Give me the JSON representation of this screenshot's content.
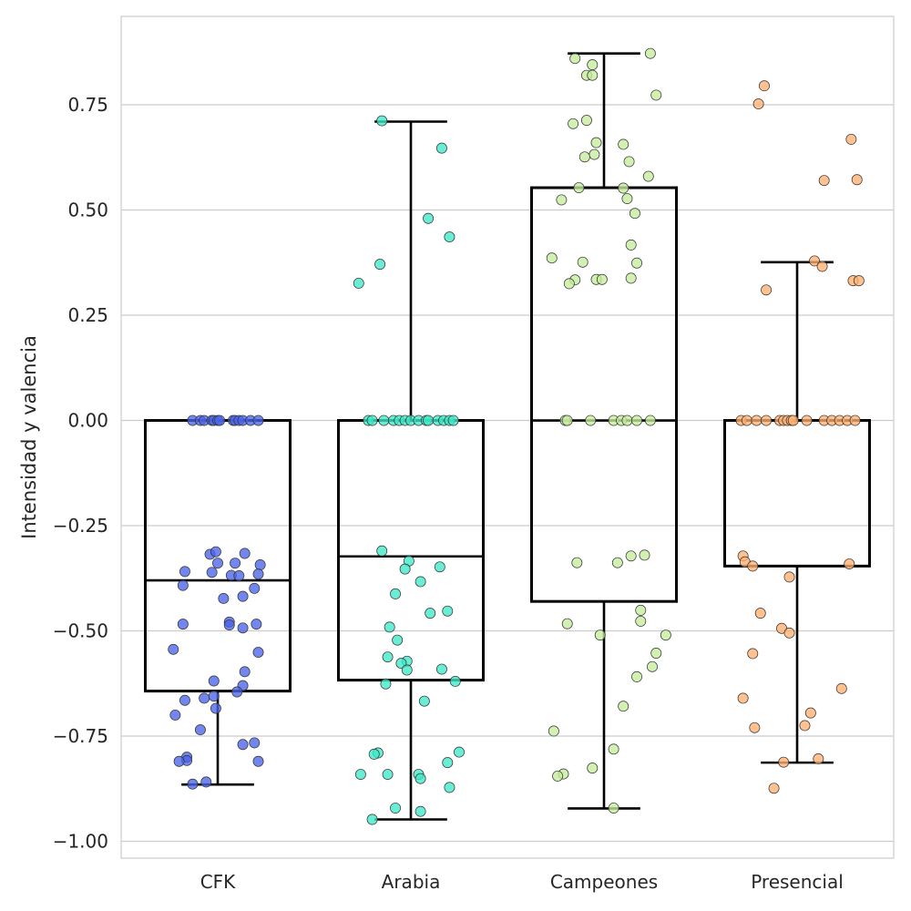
{
  "chart_data": {
    "type": "box",
    "title": "",
    "xlabel": "",
    "ylabel": "Intensidad y valencia",
    "ylim": [
      -1.04,
      0.96
    ],
    "yticks": [
      0.75,
      0.5,
      0.25,
      0.0,
      -0.25,
      -0.5,
      -0.75,
      -1.0
    ],
    "ytick_labels": [
      "0.75",
      "0.50",
      "0.25",
      "0.00",
      "−0.25",
      "−0.50",
      "−0.75",
      "−1.00"
    ],
    "grid": "horizontal",
    "categories": [
      "CFK",
      "Arabia",
      "Campeones",
      "Presencial"
    ],
    "colors": [
      "#4a64e8",
      "#3fe8c8",
      "#c4ec9c",
      "#ffb070"
    ],
    "boxes": [
      {
        "category": "CFK",
        "q1": -0.643,
        "median": -0.38,
        "q3": 0.0,
        "whisker_low": -0.865,
        "whisker_high": 0.0
      },
      {
        "category": "Arabia",
        "q1": -0.617,
        "median": -0.323,
        "q3": 0.0,
        "whisker_low": -0.948,
        "whisker_high": 0.71
      },
      {
        "category": "Campeones",
        "q1": -0.43,
        "median": 0.0,
        "q3": 0.553,
        "whisker_low": -0.922,
        "whisker_high": 0.872
      },
      {
        "category": "Presencial",
        "q1": -0.346,
        "median": 0.0,
        "q3": 0.0,
        "whisker_low": -0.813,
        "whisker_high": 0.376
      }
    ],
    "points": [
      {
        "category": "CFK",
        "values": [
          {
            "x": -0.13,
            "y": 0.0
          },
          {
            "x": -0.09,
            "y": 0.0
          },
          {
            "x": -0.07,
            "y": 0.0
          },
          {
            "x": -0.03,
            "y": 0.0
          },
          {
            "x": -0.02,
            "y": 0.0
          },
          {
            "x": 0.0,
            "y": 0.0
          },
          {
            "x": 0.01,
            "y": 0.0
          },
          {
            "x": 0.08,
            "y": 0.0
          },
          {
            "x": 0.09,
            "y": 0.0
          },
          {
            "x": 0.11,
            "y": 0.0
          },
          {
            "x": 0.13,
            "y": 0.0
          },
          {
            "x": 0.17,
            "y": 0.0
          },
          {
            "x": 0.21,
            "y": 0.0
          },
          {
            "x": -0.04,
            "y": -0.318
          },
          {
            "x": -0.01,
            "y": -0.312
          },
          {
            "x": 0.0,
            "y": -0.339
          },
          {
            "x": 0.09,
            "y": -0.339
          },
          {
            "x": 0.14,
            "y": -0.316
          },
          {
            "x": 0.22,
            "y": -0.343
          },
          {
            "x": -0.17,
            "y": -0.359
          },
          {
            "x": -0.03,
            "y": -0.361
          },
          {
            "x": 0.07,
            "y": -0.368
          },
          {
            "x": 0.11,
            "y": -0.369
          },
          {
            "x": 0.21,
            "y": -0.365
          },
          {
            "x": -0.18,
            "y": -0.392
          },
          {
            "x": 0.19,
            "y": -0.399
          },
          {
            "x": 0.03,
            "y": -0.423
          },
          {
            "x": 0.13,
            "y": -0.418
          },
          {
            "x": -0.18,
            "y": -0.484
          },
          {
            "x": 0.06,
            "y": -0.479
          },
          {
            "x": 0.06,
            "y": -0.486
          },
          {
            "x": 0.13,
            "y": -0.493
          },
          {
            "x": 0.2,
            "y": -0.484
          },
          {
            "x": -0.23,
            "y": -0.544
          },
          {
            "x": 0.21,
            "y": -0.551
          },
          {
            "x": 0.14,
            "y": -0.597
          },
          {
            "x": -0.02,
            "y": -0.619
          },
          {
            "x": 0.13,
            "y": -0.63
          },
          {
            "x": 0.1,
            "y": -0.645
          },
          {
            "x": -0.02,
            "y": -0.655
          },
          {
            "x": -0.07,
            "y": -0.66
          },
          {
            "x": -0.17,
            "y": -0.665
          },
          {
            "x": -0.01,
            "y": -0.684
          },
          {
            "x": -0.22,
            "y": -0.7
          },
          {
            "x": -0.09,
            "y": -0.735
          },
          {
            "x": 0.13,
            "y": -0.77
          },
          {
            "x": 0.19,
            "y": -0.766
          },
          {
            "x": -0.16,
            "y": -0.8
          },
          {
            "x": -0.16,
            "y": -0.808
          },
          {
            "x": -0.2,
            "y": -0.81
          },
          {
            "x": 0.21,
            "y": -0.81
          },
          {
            "x": -0.06,
            "y": -0.859
          },
          {
            "x": -0.13,
            "y": -0.864
          }
        ]
      },
      {
        "category": "Arabia",
        "values": [
          {
            "x": -0.22,
            "y": 0.0
          },
          {
            "x": -0.2,
            "y": 0.0
          },
          {
            "x": -0.14,
            "y": 0.0
          },
          {
            "x": -0.09,
            "y": 0.0
          },
          {
            "x": -0.06,
            "y": 0.0
          },
          {
            "x": -0.03,
            "y": 0.0
          },
          {
            "x": 0.0,
            "y": 0.0
          },
          {
            "x": 0.04,
            "y": 0.0
          },
          {
            "x": 0.08,
            "y": 0.0
          },
          {
            "x": 0.09,
            "y": 0.0
          },
          {
            "x": 0.14,
            "y": 0.0
          },
          {
            "x": 0.17,
            "y": 0.0
          },
          {
            "x": 0.2,
            "y": 0.0
          },
          {
            "x": 0.22,
            "y": 0.0
          },
          {
            "x": -0.15,
            "y": 0.712
          },
          {
            "x": 0.16,
            "y": 0.647
          },
          {
            "x": 0.09,
            "y": 0.48
          },
          {
            "x": 0.2,
            "y": 0.436
          },
          {
            "x": -0.16,
            "y": 0.371
          },
          {
            "x": -0.27,
            "y": 0.326
          },
          {
            "x": -0.15,
            "y": -0.31
          },
          {
            "x": -0.01,
            "y": -0.334
          },
          {
            "x": 0.15,
            "y": -0.348
          },
          {
            "x": -0.03,
            "y": -0.353
          },
          {
            "x": 0.05,
            "y": -0.383
          },
          {
            "x": -0.08,
            "y": -0.412
          },
          {
            "x": 0.1,
            "y": -0.458
          },
          {
            "x": 0.19,
            "y": -0.453
          },
          {
            "x": -0.11,
            "y": -0.491
          },
          {
            "x": -0.07,
            "y": -0.522
          },
          {
            "x": -0.12,
            "y": -0.562
          },
          {
            "x": -0.02,
            "y": -0.572
          },
          {
            "x": -0.05,
            "y": -0.577
          },
          {
            "x": -0.02,
            "y": -0.593
          },
          {
            "x": 0.16,
            "y": -0.591
          },
          {
            "x": 0.23,
            "y": -0.62
          },
          {
            "x": -0.13,
            "y": -0.626
          },
          {
            "x": 0.07,
            "y": -0.667
          },
          {
            "x": -0.17,
            "y": -0.79
          },
          {
            "x": -0.19,
            "y": -0.793
          },
          {
            "x": 0.25,
            "y": -0.788
          },
          {
            "x": 0.19,
            "y": -0.813
          },
          {
            "x": -0.12,
            "y": -0.841
          },
          {
            "x": -0.26,
            "y": -0.841
          },
          {
            "x": 0.04,
            "y": -0.841
          },
          {
            "x": 0.05,
            "y": -0.851
          },
          {
            "x": 0.2,
            "y": -0.872
          },
          {
            "x": -0.08,
            "y": -0.921
          },
          {
            "x": 0.05,
            "y": -0.929
          },
          {
            "x": -0.2,
            "y": -0.948
          }
        ]
      },
      {
        "category": "Campeones",
        "values": [
          {
            "x": -0.15,
            "y": 0.86
          },
          {
            "x": -0.06,
            "y": 0.845
          },
          {
            "x": 0.24,
            "y": 0.872
          },
          {
            "x": -0.09,
            "y": 0.82
          },
          {
            "x": -0.06,
            "y": 0.82
          },
          {
            "x": 0.27,
            "y": 0.773
          },
          {
            "x": -0.16,
            "y": 0.705
          },
          {
            "x": -0.09,
            "y": 0.713
          },
          {
            "x": -0.04,
            "y": 0.66
          },
          {
            "x": 0.1,
            "y": 0.656
          },
          {
            "x": -0.05,
            "y": 0.632
          },
          {
            "x": -0.1,
            "y": 0.626
          },
          {
            "x": 0.13,
            "y": 0.615
          },
          {
            "x": 0.23,
            "y": 0.58
          },
          {
            "x": -0.13,
            "y": 0.553
          },
          {
            "x": 0.1,
            "y": 0.552
          },
          {
            "x": 0.12,
            "y": 0.527
          },
          {
            "x": -0.22,
            "y": 0.524
          },
          {
            "x": 0.16,
            "y": 0.492
          },
          {
            "x": 0.14,
            "y": 0.417
          },
          {
            "x": -0.27,
            "y": 0.386
          },
          {
            "x": -0.11,
            "y": 0.376
          },
          {
            "x": 0.17,
            "y": 0.374
          },
          {
            "x": 0.14,
            "y": 0.338
          },
          {
            "x": -0.04,
            "y": 0.335
          },
          {
            "x": -0.01,
            "y": 0.335
          },
          {
            "x": -0.15,
            "y": 0.334
          },
          {
            "x": -0.18,
            "y": 0.325
          },
          {
            "x": -0.2,
            "y": 0.0
          },
          {
            "x": -0.19,
            "y": 0.0
          },
          {
            "x": -0.07,
            "y": 0.0
          },
          {
            "x": 0.05,
            "y": 0.0
          },
          {
            "x": 0.09,
            "y": 0.0
          },
          {
            "x": 0.12,
            "y": 0.0
          },
          {
            "x": 0.17,
            "y": 0.0
          },
          {
            "x": 0.24,
            "y": 0.0
          },
          {
            "x": 0.21,
            "y": -0.32
          },
          {
            "x": 0.14,
            "y": -0.322
          },
          {
            "x": -0.14,
            "y": -0.338
          },
          {
            "x": 0.07,
            "y": -0.338
          },
          {
            "x": 0.19,
            "y": -0.451
          },
          {
            "x": 0.19,
            "y": -0.477
          },
          {
            "x": -0.19,
            "y": -0.483
          },
          {
            "x": -0.02,
            "y": -0.51
          },
          {
            "x": 0.32,
            "y": -0.51
          },
          {
            "x": 0.27,
            "y": -0.553
          },
          {
            "x": 0.25,
            "y": -0.585
          },
          {
            "x": 0.17,
            "y": -0.609
          },
          {
            "x": 0.1,
            "y": -0.679
          },
          {
            "x": -0.26,
            "y": -0.738
          },
          {
            "x": 0.05,
            "y": -0.781
          },
          {
            "x": -0.06,
            "y": -0.826
          },
          {
            "x": -0.21,
            "y": -0.84
          },
          {
            "x": -0.24,
            "y": -0.845
          },
          {
            "x": 0.05,
            "y": -0.921
          }
        ]
      },
      {
        "category": "Presencial",
        "values": [
          {
            "x": -0.2,
            "y": 0.752
          },
          {
            "x": -0.17,
            "y": 0.795
          },
          {
            "x": 0.28,
            "y": 0.668
          },
          {
            "x": 0.31,
            "y": 0.572
          },
          {
            "x": 0.14,
            "y": 0.57
          },
          {
            "x": 0.09,
            "y": 0.379
          },
          {
            "x": 0.13,
            "y": 0.366
          },
          {
            "x": 0.29,
            "y": 0.332
          },
          {
            "x": 0.32,
            "y": 0.332
          },
          {
            "x": -0.16,
            "y": 0.31
          },
          {
            "x": -0.29,
            "y": 0.0
          },
          {
            "x": -0.26,
            "y": 0.0
          },
          {
            "x": -0.21,
            "y": 0.0
          },
          {
            "x": -0.16,
            "y": 0.0
          },
          {
            "x": -0.09,
            "y": 0.0
          },
          {
            "x": -0.07,
            "y": 0.0
          },
          {
            "x": -0.05,
            "y": 0.0
          },
          {
            "x": -0.03,
            "y": 0.0
          },
          {
            "x": -0.02,
            "y": 0.0
          },
          {
            "x": 0.05,
            "y": 0.0
          },
          {
            "x": 0.14,
            "y": 0.0
          },
          {
            "x": 0.18,
            "y": 0.0
          },
          {
            "x": 0.22,
            "y": 0.0
          },
          {
            "x": 0.26,
            "y": 0.0
          },
          {
            "x": 0.3,
            "y": 0.0
          },
          {
            "x": -0.28,
            "y": -0.322
          },
          {
            "x": -0.27,
            "y": -0.336
          },
          {
            "x": -0.23,
            "y": -0.346
          },
          {
            "x": 0.27,
            "y": -0.341
          },
          {
            "x": -0.04,
            "y": -0.372
          },
          {
            "x": -0.19,
            "y": -0.458
          },
          {
            "x": -0.08,
            "y": -0.494
          },
          {
            "x": -0.04,
            "y": -0.505
          },
          {
            "x": -0.23,
            "y": -0.554
          },
          {
            "x": 0.23,
            "y": -0.637
          },
          {
            "x": -0.28,
            "y": -0.66
          },
          {
            "x": 0.07,
            "y": -0.695
          },
          {
            "x": 0.04,
            "y": -0.725
          },
          {
            "x": -0.22,
            "y": -0.73
          },
          {
            "x": 0.11,
            "y": -0.804
          },
          {
            "x": -0.07,
            "y": -0.812
          },
          {
            "x": -0.12,
            "y": -0.874
          }
        ]
      }
    ]
  }
}
